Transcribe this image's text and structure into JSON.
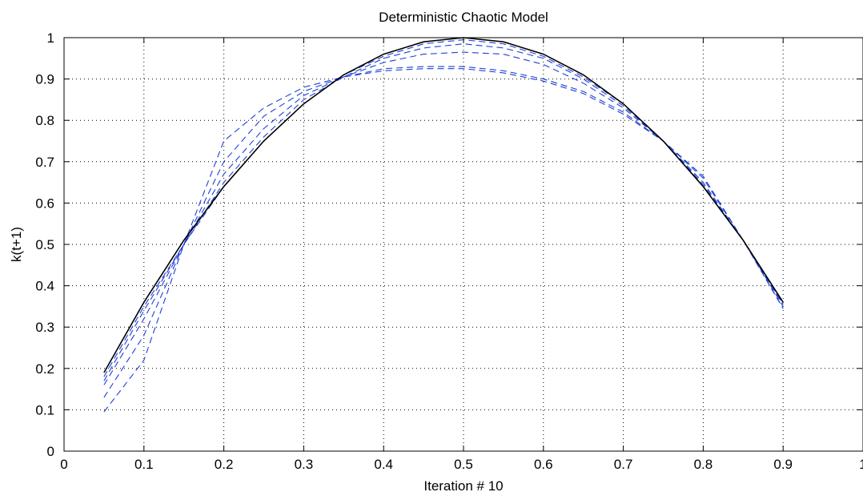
{
  "chart_data": {
    "type": "line",
    "title": "Deterministic Chaotic Model",
    "xlabel": "Iteration # 10",
    "ylabel": "k(t+1)",
    "xlim": [
      0,
      1
    ],
    "ylim": [
      0,
      1
    ],
    "xticks": [
      0,
      0.1,
      0.2,
      0.3,
      0.4,
      0.5,
      0.6,
      0.7,
      0.8,
      0.9,
      1
    ],
    "yticks": [
      0,
      0.1,
      0.2,
      0.3,
      0.4,
      0.5,
      0.6,
      0.7,
      0.8,
      0.9,
      1
    ],
    "xtick_labels": [
      "0",
      "0.1",
      "0.2",
      "0.3",
      "0.4",
      "0.5",
      "0.6",
      "0.7",
      "0.8",
      "0.9",
      "1"
    ],
    "ytick_labels": [
      "0",
      "0.1",
      "0.2",
      "0.3",
      "0.4",
      "0.5",
      "0.6",
      "0.7",
      "0.8",
      "0.9",
      "1"
    ],
    "grid": true,
    "x": [
      0.05,
      0.1,
      0.15,
      0.2,
      0.25,
      0.3,
      0.35,
      0.4,
      0.45,
      0.5,
      0.55,
      0.6,
      0.65,
      0.7,
      0.75,
      0.8,
      0.85,
      0.9
    ],
    "series": [
      {
        "style": "solid",
        "color": "#000000",
        "values": [
          0.19,
          0.36,
          0.51,
          0.64,
          0.75,
          0.84,
          0.91,
          0.96,
          0.99,
          1.0,
          0.99,
          0.96,
          0.91,
          0.84,
          0.75,
          0.64,
          0.51,
          0.36
        ]
      },
      {
        "style": "dashed",
        "color": "#1f3fd6",
        "values": [
          0.18,
          0.35,
          0.5,
          0.64,
          0.75,
          0.84,
          0.91,
          0.955,
          0.985,
          0.995,
          0.985,
          0.955,
          0.905,
          0.84,
          0.75,
          0.64,
          0.51,
          0.355
        ]
      },
      {
        "style": "dashed",
        "color": "#1f3fd6",
        "values": [
          0.17,
          0.34,
          0.5,
          0.65,
          0.76,
          0.85,
          0.905,
          0.95,
          0.975,
          0.985,
          0.975,
          0.95,
          0.9,
          0.835,
          0.75,
          0.645,
          0.51,
          0.355
        ]
      },
      {
        "style": "dashed",
        "color": "#1f3fd6",
        "values": [
          0.16,
          0.32,
          0.5,
          0.67,
          0.78,
          0.86,
          0.905,
          0.94,
          0.96,
          0.965,
          0.96,
          0.935,
          0.89,
          0.83,
          0.75,
          0.65,
          0.51,
          0.35
        ]
      },
      {
        "style": "dashed",
        "color": "#1f3fd6",
        "values": [
          0.13,
          0.28,
          0.5,
          0.7,
          0.81,
          0.87,
          0.905,
          0.925,
          0.93,
          0.93,
          0.92,
          0.9,
          0.87,
          0.82,
          0.75,
          0.66,
          0.51,
          0.345
        ]
      },
      {
        "style": "dashed",
        "color": "#1f3fd6",
        "values": [
          0.095,
          0.22,
          0.5,
          0.75,
          0.83,
          0.88,
          0.905,
          0.92,
          0.925,
          0.925,
          0.915,
          0.895,
          0.865,
          0.815,
          0.75,
          0.665,
          0.51,
          0.345
        ]
      }
    ]
  }
}
